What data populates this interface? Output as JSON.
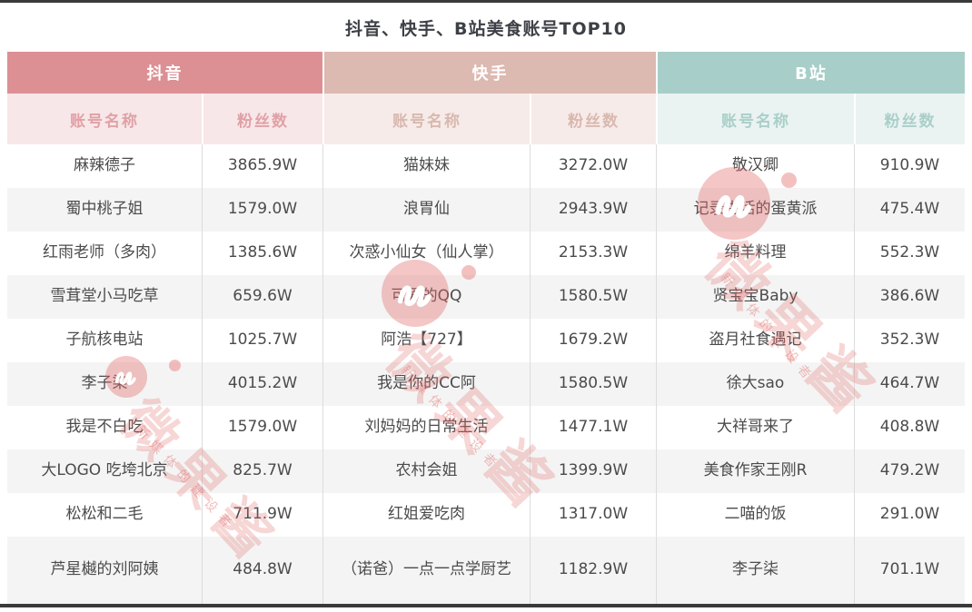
{
  "chart_data": {
    "type": "table",
    "title": "抖音、快手、B站美食账号TOP10",
    "column_headers": [
      "账号名称",
      "粉丝数"
    ],
    "groups": [
      {
        "platform": "抖音",
        "key": "douyin",
        "header_bg": "#dc9094",
        "sub_bg": "#f8e7e8",
        "sub_text": "#e0a1a7",
        "rows": [
          {
            "name": "麻辣德子",
            "fans": "3865.9W"
          },
          {
            "name": "蜀中桃子姐",
            "fans": "1579.0W"
          },
          {
            "name": "红雨老师（多肉）",
            "fans": "1385.6W"
          },
          {
            "name": "雪茸堂小马吃草",
            "fans": "659.6W"
          },
          {
            "name": "子航核电站",
            "fans": "1025.7W"
          },
          {
            "name": "李子柒",
            "fans": "4015.2W"
          },
          {
            "name": "我是不白吃",
            "fans": "1579.0W"
          },
          {
            "name": "大LOGO 吃垮北京",
            "fans": "825.7W"
          },
          {
            "name": "松松和二毛",
            "fans": "711.9W"
          },
          {
            "name": "芦星樾的刘阿姨",
            "fans": "484.8W"
          }
        ]
      },
      {
        "platform": "快手",
        "key": "kuaishou",
        "header_bg": "#dcb9b1",
        "sub_bg": "#f6ebe8",
        "sub_text": "#d9b8af",
        "rows": [
          {
            "name": "猫妹妹",
            "fans": "3272.0W"
          },
          {
            "name": "浪胃仙",
            "fans": "2943.9W"
          },
          {
            "name": "次惑小仙女（仙人掌）",
            "fans": "2153.3W"
          },
          {
            "name": "可爱的QQ",
            "fans": "1580.5W"
          },
          {
            "name": "阿浩【727】",
            "fans": "1679.2W"
          },
          {
            "name": "我是你的CC阿",
            "fans": "1580.5W"
          },
          {
            "name": "刘妈妈的日常生活",
            "fans": "1477.1W"
          },
          {
            "name": "农村会姐",
            "fans": "1399.9W"
          },
          {
            "name": "红姐爱吃肉",
            "fans": "1317.0W"
          },
          {
            "name": "（诺爸）一点一点学厨艺",
            "fans": "1182.9W"
          }
        ]
      },
      {
        "platform": "B站",
        "key": "bilibili",
        "header_bg": "#a7cec8",
        "sub_bg": "#eaf3f1",
        "sub_text": "#a9cfc9",
        "rows": [
          {
            "name": "敬汉卿",
            "fans": "910.9W"
          },
          {
            "name": "记录生活的蛋黄派",
            "fans": "475.4W"
          },
          {
            "name": "绵羊料理",
            "fans": "552.3W"
          },
          {
            "name": "贤宝宝Baby",
            "fans": "386.6W"
          },
          {
            "name": "盗月社食遇记",
            "fans": "352.3W"
          },
          {
            "name": "徐大sao",
            "fans": "464.7W"
          },
          {
            "name": "大祥哥来了",
            "fans": "408.8W"
          },
          {
            "name": "美食作家王刚R",
            "fans": "479.2W"
          },
          {
            "name": "二喵的饭",
            "fans": "291.0W"
          },
          {
            "name": "李子柒",
            "fans": "701.1W"
          }
        ]
      }
    ],
    "layout": {
      "striped_rows": "even",
      "stripe_color": "#f4f4f4",
      "text_color": "#4b4b4b",
      "rule_color": "#3a3a3a"
    }
  },
  "watermark": {
    "brand": "微果酱",
    "slogan": "新媒体的建设者",
    "color": "#e26a6a"
  }
}
